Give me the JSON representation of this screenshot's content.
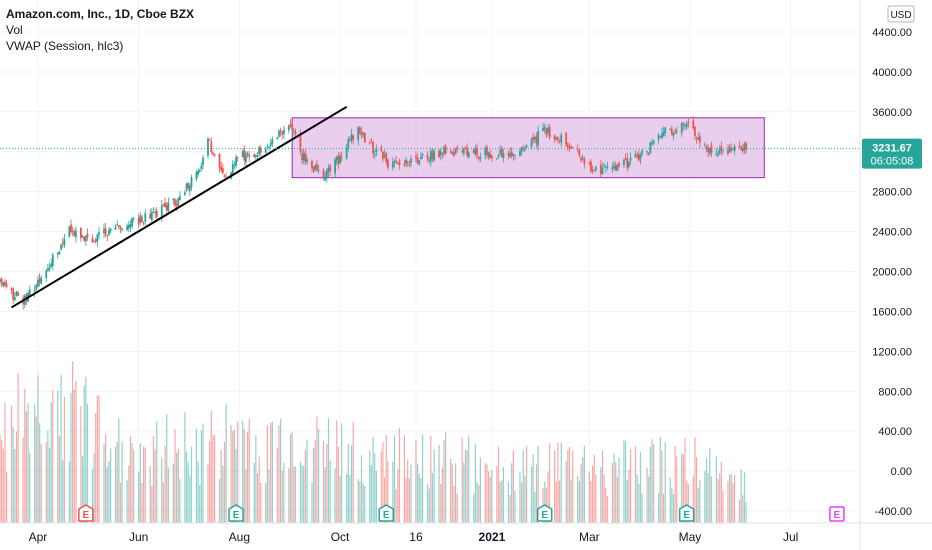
{
  "header": {
    "title": "Amazon.com, Inc., 1D, Cboe BZX",
    "vol_label": "Vol",
    "vwap_label": "VWAP (Session, hlc3)",
    "currency": "USD"
  },
  "price_badge": {
    "value": "3231.67",
    "countdown": "06:05:08"
  },
  "colors": {
    "up": "#26a69a",
    "down": "#ef5350",
    "range_box_fill": "#e1bee7",
    "range_box_border": "#9c27b0",
    "trendline": "#000000",
    "price_badge_bg": "#26a69a",
    "earnings_past_down": "#ef5350",
    "earnings_past_up": "#26a69a",
    "earnings_future": "#e040fb"
  },
  "chart_data": {
    "type": "candlestick",
    "symbol": "Amazon.com, Inc.",
    "interval": "1D",
    "exchange": "Cboe BZX",
    "last_price": 3231.67,
    "y_axis": {
      "ticks": [
        "4400.00",
        "4000.00",
        "3600.00",
        "3200.00",
        "2800.00",
        "2400.00",
        "2000.00",
        "1600.00",
        "1200.00",
        "800.00",
        "400.00",
        "0.00",
        "-400.00"
      ],
      "range": [
        -520,
        4600
      ]
    },
    "x_axis": {
      "ticks": [
        "Apr",
        "Jun",
        "Aug",
        "Oct",
        "16",
        "2021",
        "Mar",
        "May",
        "Jul"
      ],
      "range": [
        "2020-03-09",
        "2021-08-12"
      ]
    },
    "price_keypoints": [
      {
        "date": "2020-03-09",
        "close": 1900
      },
      {
        "date": "2020-03-16",
        "close": 1780
      },
      {
        "date": "2020-03-23",
        "close": 1720
      },
      {
        "date": "2020-04-01",
        "close": 1900
      },
      {
        "date": "2020-04-14",
        "close": 2250
      },
      {
        "date": "2020-04-21",
        "close": 2420
      },
      {
        "date": "2020-05-04",
        "close": 2330
      },
      {
        "date": "2020-05-20",
        "close": 2450
      },
      {
        "date": "2020-06-08",
        "close": 2550
      },
      {
        "date": "2020-06-25",
        "close": 2700
      },
      {
        "date": "2020-07-08",
        "close": 3050
      },
      {
        "date": "2020-07-13",
        "close": 3300
      },
      {
        "date": "2020-07-24",
        "close": 2950
      },
      {
        "date": "2020-08-01",
        "close": 3150
      },
      {
        "date": "2020-08-20",
        "close": 3250
      },
      {
        "date": "2020-09-01",
        "close": 3500
      },
      {
        "date": "2020-09-08",
        "close": 3150
      },
      {
        "date": "2020-09-21",
        "close": 2950
      },
      {
        "date": "2020-10-01",
        "close": 3150
      },
      {
        "date": "2020-10-12",
        "close": 3450
      },
      {
        "date": "2020-10-20",
        "close": 3250
      },
      {
        "date": "2020-11-02",
        "close": 3050
      },
      {
        "date": "2020-11-10",
        "close": 3100
      },
      {
        "date": "2020-12-01",
        "close": 3200
      },
      {
        "date": "2020-12-20",
        "close": 3200
      },
      {
        "date": "2021-01-12",
        "close": 3150
      },
      {
        "date": "2021-02-02",
        "close": 3400
      },
      {
        "date": "2021-02-15",
        "close": 3300
      },
      {
        "date": "2021-03-05",
        "close": 3000
      },
      {
        "date": "2021-03-20",
        "close": 3050
      },
      {
        "date": "2021-04-05",
        "close": 3200
      },
      {
        "date": "2021-04-14",
        "close": 3400
      },
      {
        "date": "2021-04-30",
        "close": 3450
      },
      {
        "date": "2021-05-12",
        "close": 3200
      },
      {
        "date": "2021-06-04",
        "close": 3231.67
      }
    ],
    "volume_keypoints": [
      {
        "date": "2020-03-09",
        "volume": 700
      },
      {
        "date": "2020-04-20",
        "volume": 800
      },
      {
        "date": "2020-06-01",
        "volume": 500
      },
      {
        "date": "2020-08-01",
        "volume": 580
      },
      {
        "date": "2020-09-15",
        "volume": 520
      },
      {
        "date": "2020-11-01",
        "volume": 480
      },
      {
        "date": "2021-01-01",
        "volume": 400
      },
      {
        "date": "2021-03-01",
        "volume": 380
      },
      {
        "date": "2021-05-01",
        "volume": 430
      },
      {
        "date": "2021-06-04",
        "volume": 260
      }
    ],
    "annotations": {
      "trendline": [
        {
          "date": "2020-03-16",
          "price": 1640
        },
        {
          "date": "2020-10-05",
          "price": 3650
        }
      ],
      "range_box": {
        "start": "2020-09-02",
        "end": "2021-06-15",
        "top": 3540,
        "bottom": 2940
      }
    },
    "earnings_markers": [
      {
        "date": "2020-04-30",
        "label": "E",
        "status": "past-down"
      },
      {
        "date": "2020-07-30",
        "label": "E",
        "status": "past-up"
      },
      {
        "date": "2020-10-29",
        "label": "E",
        "status": "past-up"
      },
      {
        "date": "2021-02-02",
        "label": "E",
        "status": "past-up"
      },
      {
        "date": "2021-04-29",
        "label": "E",
        "status": "past-up"
      },
      {
        "date": "2021-07-29",
        "label": "E",
        "status": "future"
      }
    ]
  }
}
